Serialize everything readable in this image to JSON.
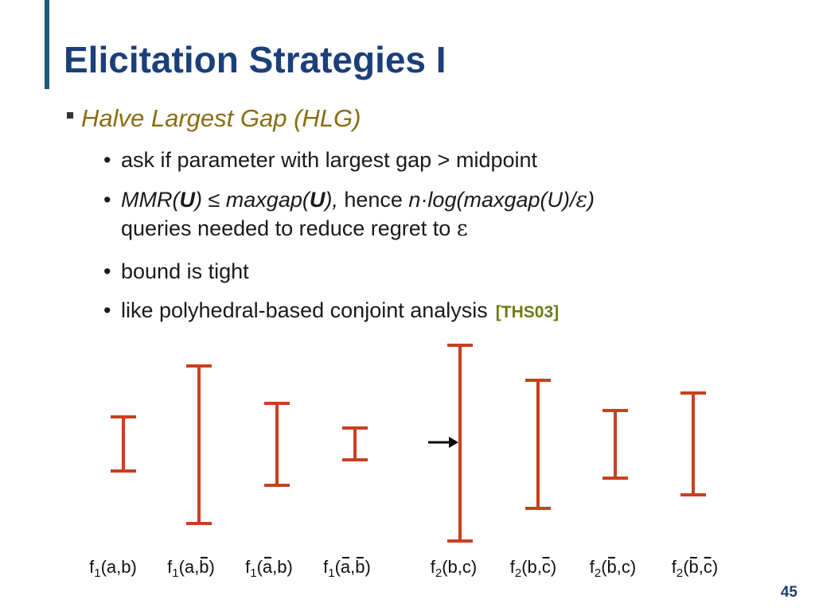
{
  "slide": {
    "title": "Elicitation Strategies I",
    "heading": "Halve Largest Gap (HLG)",
    "bullets": {
      "b1": "ask if parameter with largest gap > midpoint",
      "b2": {
        "mmr_prefix": "MMR(",
        "mmr_u": "U",
        "mmr_suffix": ") ≤ maxgap(",
        "maxgap_u": "U",
        "maxgap_suffix": "),",
        "hence": " hence ",
        "formula": "n·log(maxgap(U)/",
        "eps": "ε",
        "close": ")",
        "line2": "queries needed to reduce regret to ",
        "eps2": "ε"
      },
      "b3": "bound is tight",
      "b4": "like polyhedral-based conjoint analysis",
      "citation": "[THS03]"
    },
    "page_number": "45"
  },
  "diagram": {
    "color": "#c8401f",
    "arrow_color": "#000000",
    "selected_label_index": 4,
    "labels": [
      {
        "f": "f",
        "sub": "1",
        "args": "(a,b)",
        "bars": []
      },
      {
        "f": "f",
        "sub": "1",
        "args": "(a,b)",
        "bars": [
          "b"
        ]
      },
      {
        "f": "f",
        "sub": "1",
        "args": "(a,b)",
        "bars": [
          "a"
        ]
      },
      {
        "f": "f",
        "sub": "1",
        "args": "(a,b)",
        "bars": [
          "a",
          "b"
        ]
      },
      {
        "f": "f",
        "sub": "2",
        "args": "(b,c)",
        "bars": []
      },
      {
        "f": "f",
        "sub": "2",
        "args": "(b,c)",
        "bars": [
          "c"
        ]
      },
      {
        "f": "f",
        "sub": "2",
        "args": "(b,c)",
        "bars": [
          "b"
        ]
      },
      {
        "f": "f",
        "sub": "2",
        "args": "(b,c)",
        "bars": [
          "b",
          "c"
        ]
      }
    ]
  }
}
